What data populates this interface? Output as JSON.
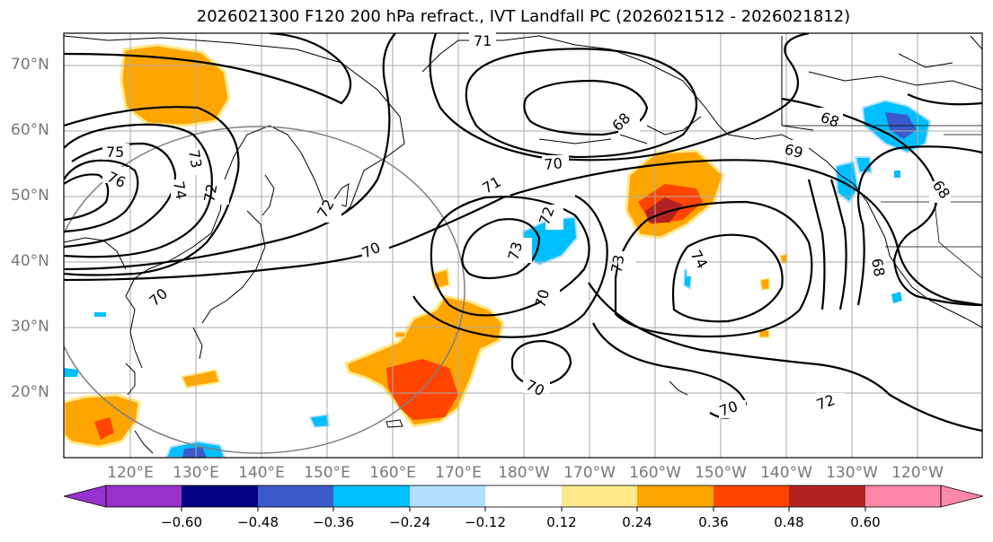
{
  "title": "2026021300 F120 200 hPa refract., IVT Landfall PC (2026021512 - 2026021812)",
  "lat_labels": [
    "70°N",
    "60°N",
    "50°N",
    "40°N",
    "30°N",
    "20°N"
  ],
  "lon_labels": [
    "120°E",
    "130°E",
    "140°E",
    "150°E",
    "160°E",
    "170°E",
    "180°W",
    "170°W",
    "160°W",
    "150°W",
    "140°W",
    "130°W",
    "120°W"
  ],
  "contour_labels": [
    "71",
    "75",
    "76",
    "73",
    "74",
    "72",
    "72",
    "70",
    "71",
    "70",
    "72",
    "73",
    "70",
    "73",
    "74",
    "68",
    "69",
    "68",
    "68",
    "70",
    "70",
    "72",
    "70",
    "68"
  ],
  "colorbar": {
    "ticks": [
      "−0.60",
      "−0.48",
      "−0.36",
      "−0.24",
      "−0.12",
      "0.12",
      "0.24",
      "0.36",
      "0.48",
      "0.60"
    ],
    "colors": [
      "#9932cc",
      "#000080",
      "#3b5bcc",
      "#00bfff",
      "#b0e0ff",
      "#ffffff",
      "#ffe88a",
      "#ffa500",
      "#ff4500",
      "#b22222",
      "#ff88aa"
    ]
  }
}
